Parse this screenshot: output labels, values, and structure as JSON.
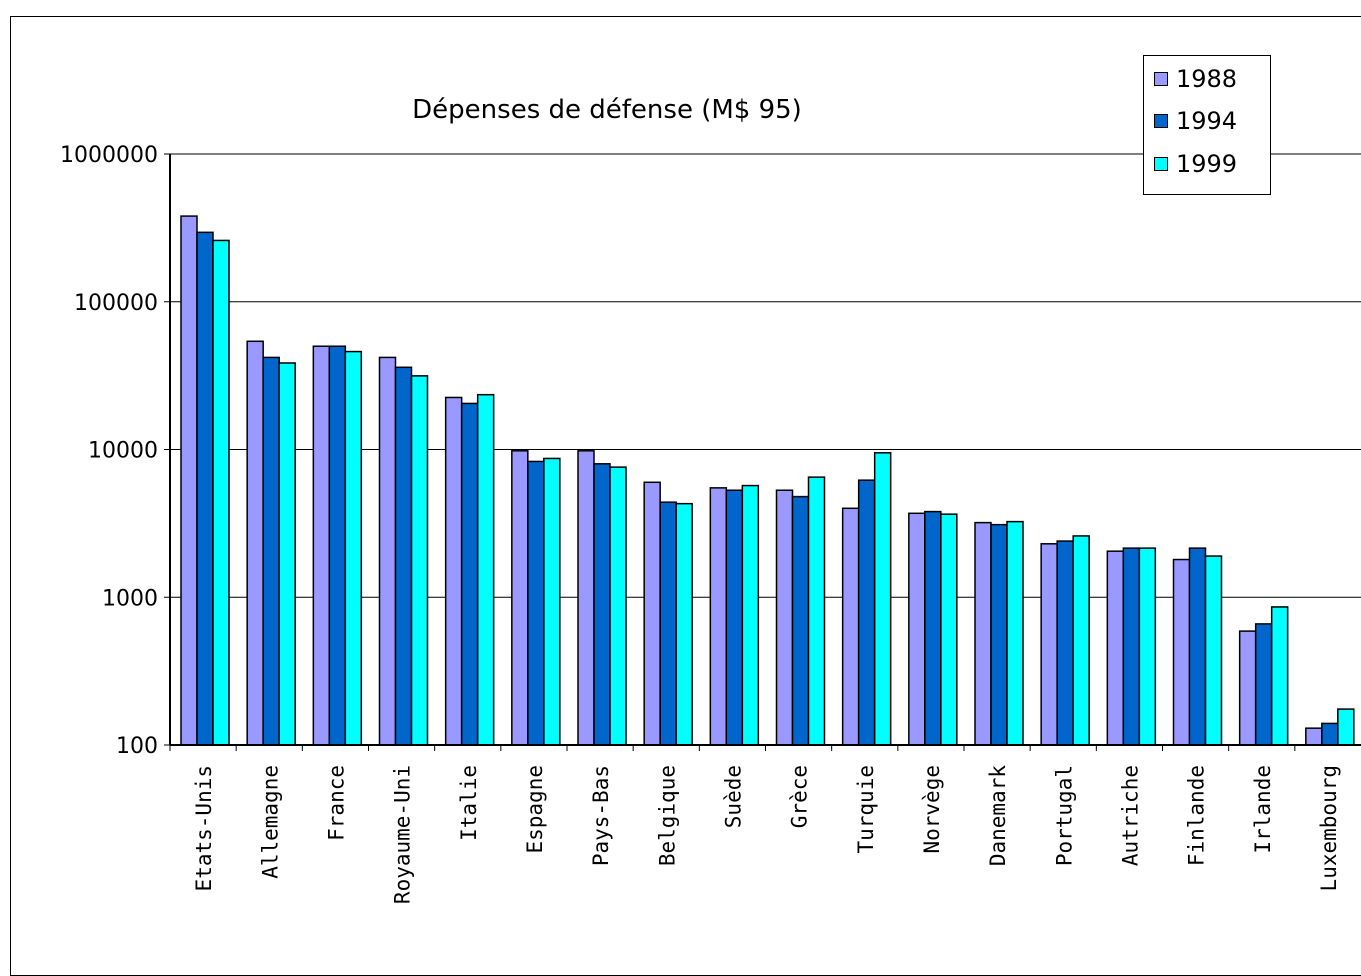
{
  "chart_data": {
    "type": "bar",
    "title": "Dépenses de défense (M$ 95)",
    "xlabel": "",
    "ylabel": "",
    "yscale": "log",
    "ylim": [
      100,
      1000000
    ],
    "yticks": [
      "100",
      "1000",
      "10000",
      "100000",
      "1000000"
    ],
    "grid": true,
    "legend_position": "top-right",
    "categories": [
      "Etats-Unis",
      "Allemagne",
      "France",
      "Royaume-Uni",
      "Italie",
      "Espagne",
      "Pays-Bas",
      "Belgique",
      "Suède",
      "Grèce",
      "Turquie",
      "Norvège",
      "Danemark",
      "Portugal",
      "Autriche",
      "Finlande",
      "Irlande",
      "Luxembourg"
    ],
    "series": [
      {
        "name": "1988",
        "color": "#9999ff",
        "values": [
          380000,
          54000,
          50000,
          42000,
          22500,
          9800,
          9800,
          6000,
          5500,
          5300,
          4000,
          3700,
          3200,
          2300,
          2050,
          1800,
          590,
          130
        ]
      },
      {
        "name": "1994",
        "color": "#0066cc",
        "values": [
          295000,
          42000,
          50000,
          36000,
          20500,
          8300,
          8000,
          4400,
          5300,
          4800,
          6200,
          3800,
          3100,
          2400,
          2150,
          2150,
          660,
          140
        ]
      },
      {
        "name": "1999",
        "color": "#00ffff",
        "values": [
          260000,
          38500,
          46000,
          31500,
          23500,
          8700,
          7600,
          4300,
          5700,
          6500,
          9500,
          3650,
          3250,
          2600,
          2150,
          1900,
          860,
          175
        ]
      }
    ]
  },
  "legend": {
    "items": [
      {
        "label": "1988",
        "color": "#9999ff"
      },
      {
        "label": "1994",
        "color": "#0066cc"
      },
      {
        "label": "1999",
        "color": "#00ffff"
      }
    ]
  }
}
